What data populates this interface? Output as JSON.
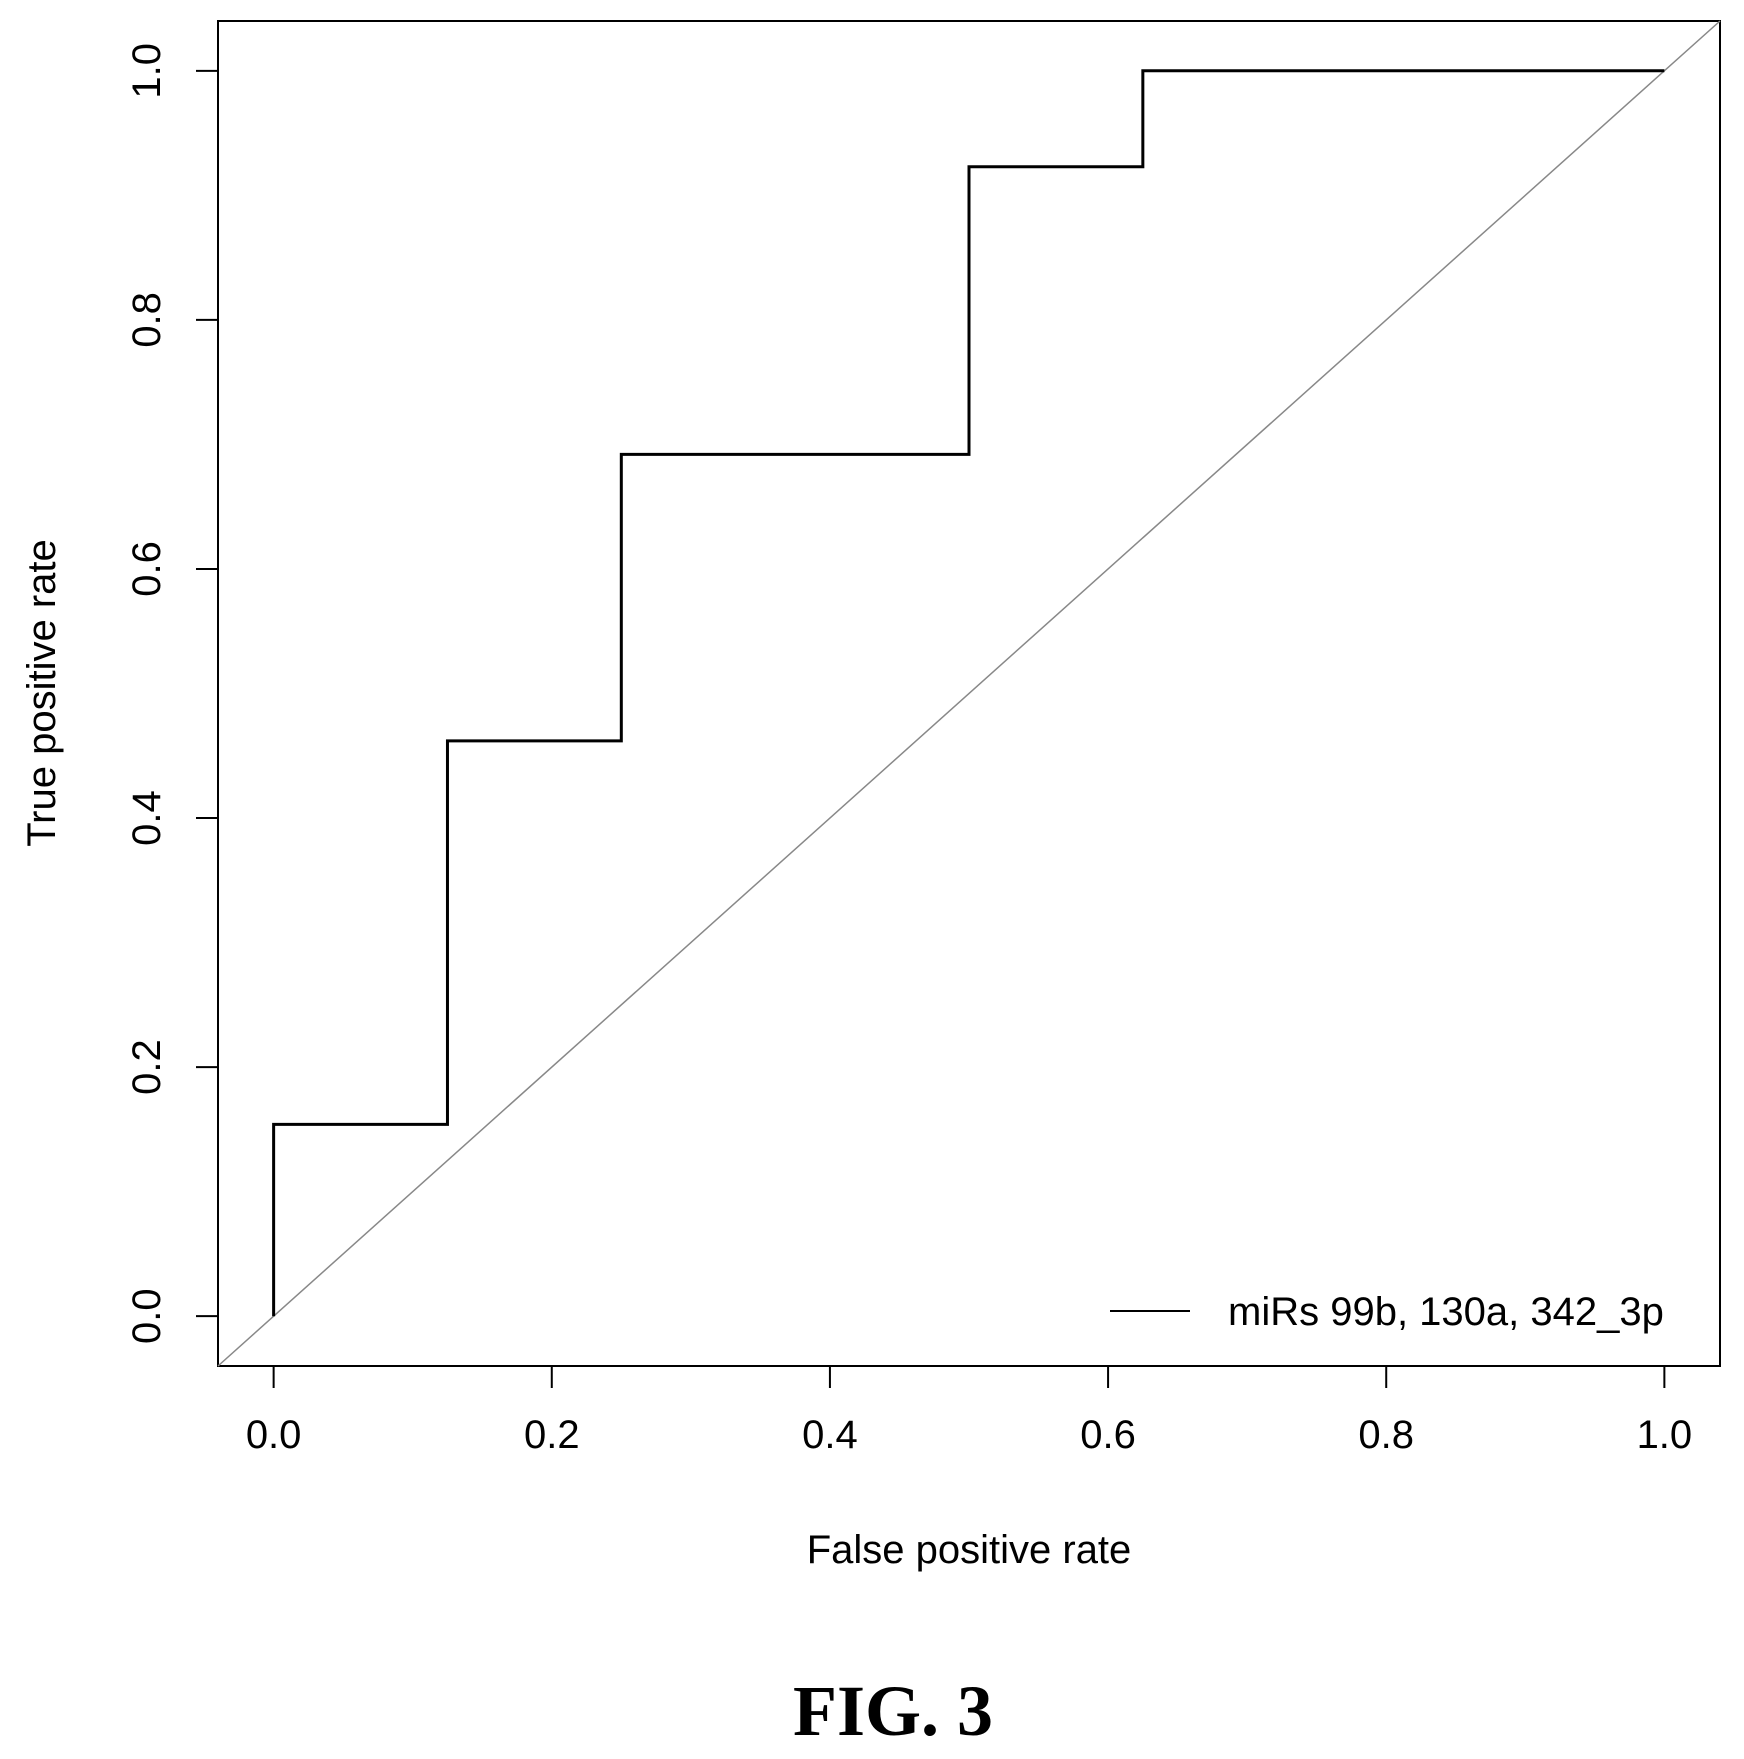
{
  "chart_data": {
    "type": "line",
    "xlabel": "False positive rate",
    "ylabel": "True positive rate",
    "xlim": [
      -0.04,
      1.04
    ],
    "ylim": [
      -0.04,
      1.04
    ],
    "x_ticks": [
      "0.0",
      "0.2",
      "0.4",
      "0.6",
      "0.8",
      "1.0"
    ],
    "y_ticks": [
      "0.0",
      "0.2",
      "0.4",
      "0.6",
      "0.8",
      "1.0"
    ],
    "grid": false,
    "legend_position": "bottom-right",
    "series": [
      {
        "name": "miRs 99b, 130a, 342_3p",
        "step": true,
        "x": [
          0.0,
          0.0,
          0.125,
          0.125,
          0.25,
          0.25,
          0.5,
          0.5,
          0.625,
          0.625,
          1.0
        ],
        "y": [
          0.0,
          0.154,
          0.154,
          0.462,
          0.462,
          0.692,
          0.692,
          0.923,
          0.923,
          1.0,
          1.0
        ]
      }
    ],
    "reference_line": {
      "x": [
        -0.04,
        1.04
      ],
      "y": [
        -0.04,
        1.04
      ]
    }
  },
  "caption": "FIG. 3"
}
